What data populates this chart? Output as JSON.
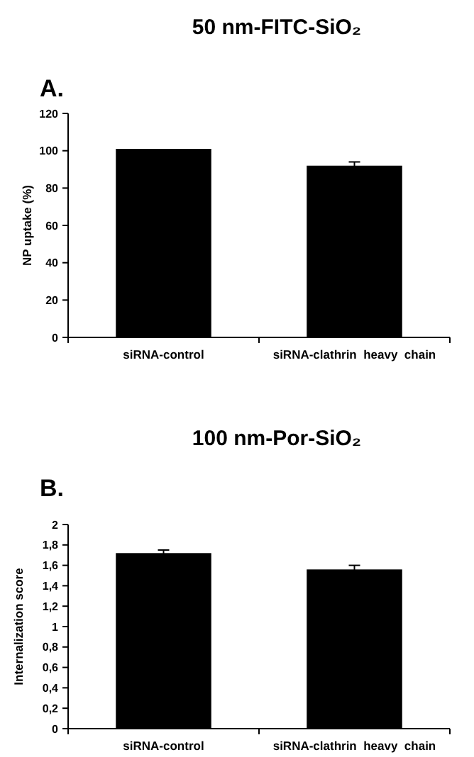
{
  "chart_data": [
    {
      "type": "bar",
      "title": "50 nm-FITC-SiO₂",
      "ylabel": "NP uptake (%)",
      "annotations": [
        "A."
      ],
      "categories": [
        "siRNA-control",
        "siRNA-clathrin  heavy  chain"
      ],
      "values": [
        101,
        92
      ],
      "errors": [
        null,
        2
      ],
      "color": "#000000",
      "ylim": [
        0,
        120
      ],
      "yticks": [
        0,
        20,
        40,
        60,
        80,
        100,
        120
      ],
      "grid": false
    },
    {
      "type": "bar",
      "title": "100 nm-Por-SiO₂",
      "ylabel": "Internalization score",
      "annotations": [
        "B."
      ],
      "categories": [
        "siRNA-control",
        "siRNA-clathrin  heavy  chain"
      ],
      "values": [
        1.72,
        1.56
      ],
      "errors": [
        0.03,
        0.04
      ],
      "color": "#000000",
      "ylim": [
        0,
        2
      ],
      "yticks": [
        0,
        {
          "value": 0.2,
          "label": "0,2"
        },
        {
          "value": 0.4,
          "label": "0,4"
        },
        {
          "value": 0.6,
          "label": "0,6"
        },
        {
          "value": 0.8,
          "label": "0,8"
        },
        1,
        {
          "value": 1.2,
          "label": "1,2"
        },
        {
          "value": 1.4,
          "label": "1,4"
        },
        {
          "value": 1.6,
          "label": "1,6"
        },
        {
          "value": 1.8,
          "label": "1,8"
        },
        2
      ],
      "grid": false
    }
  ]
}
